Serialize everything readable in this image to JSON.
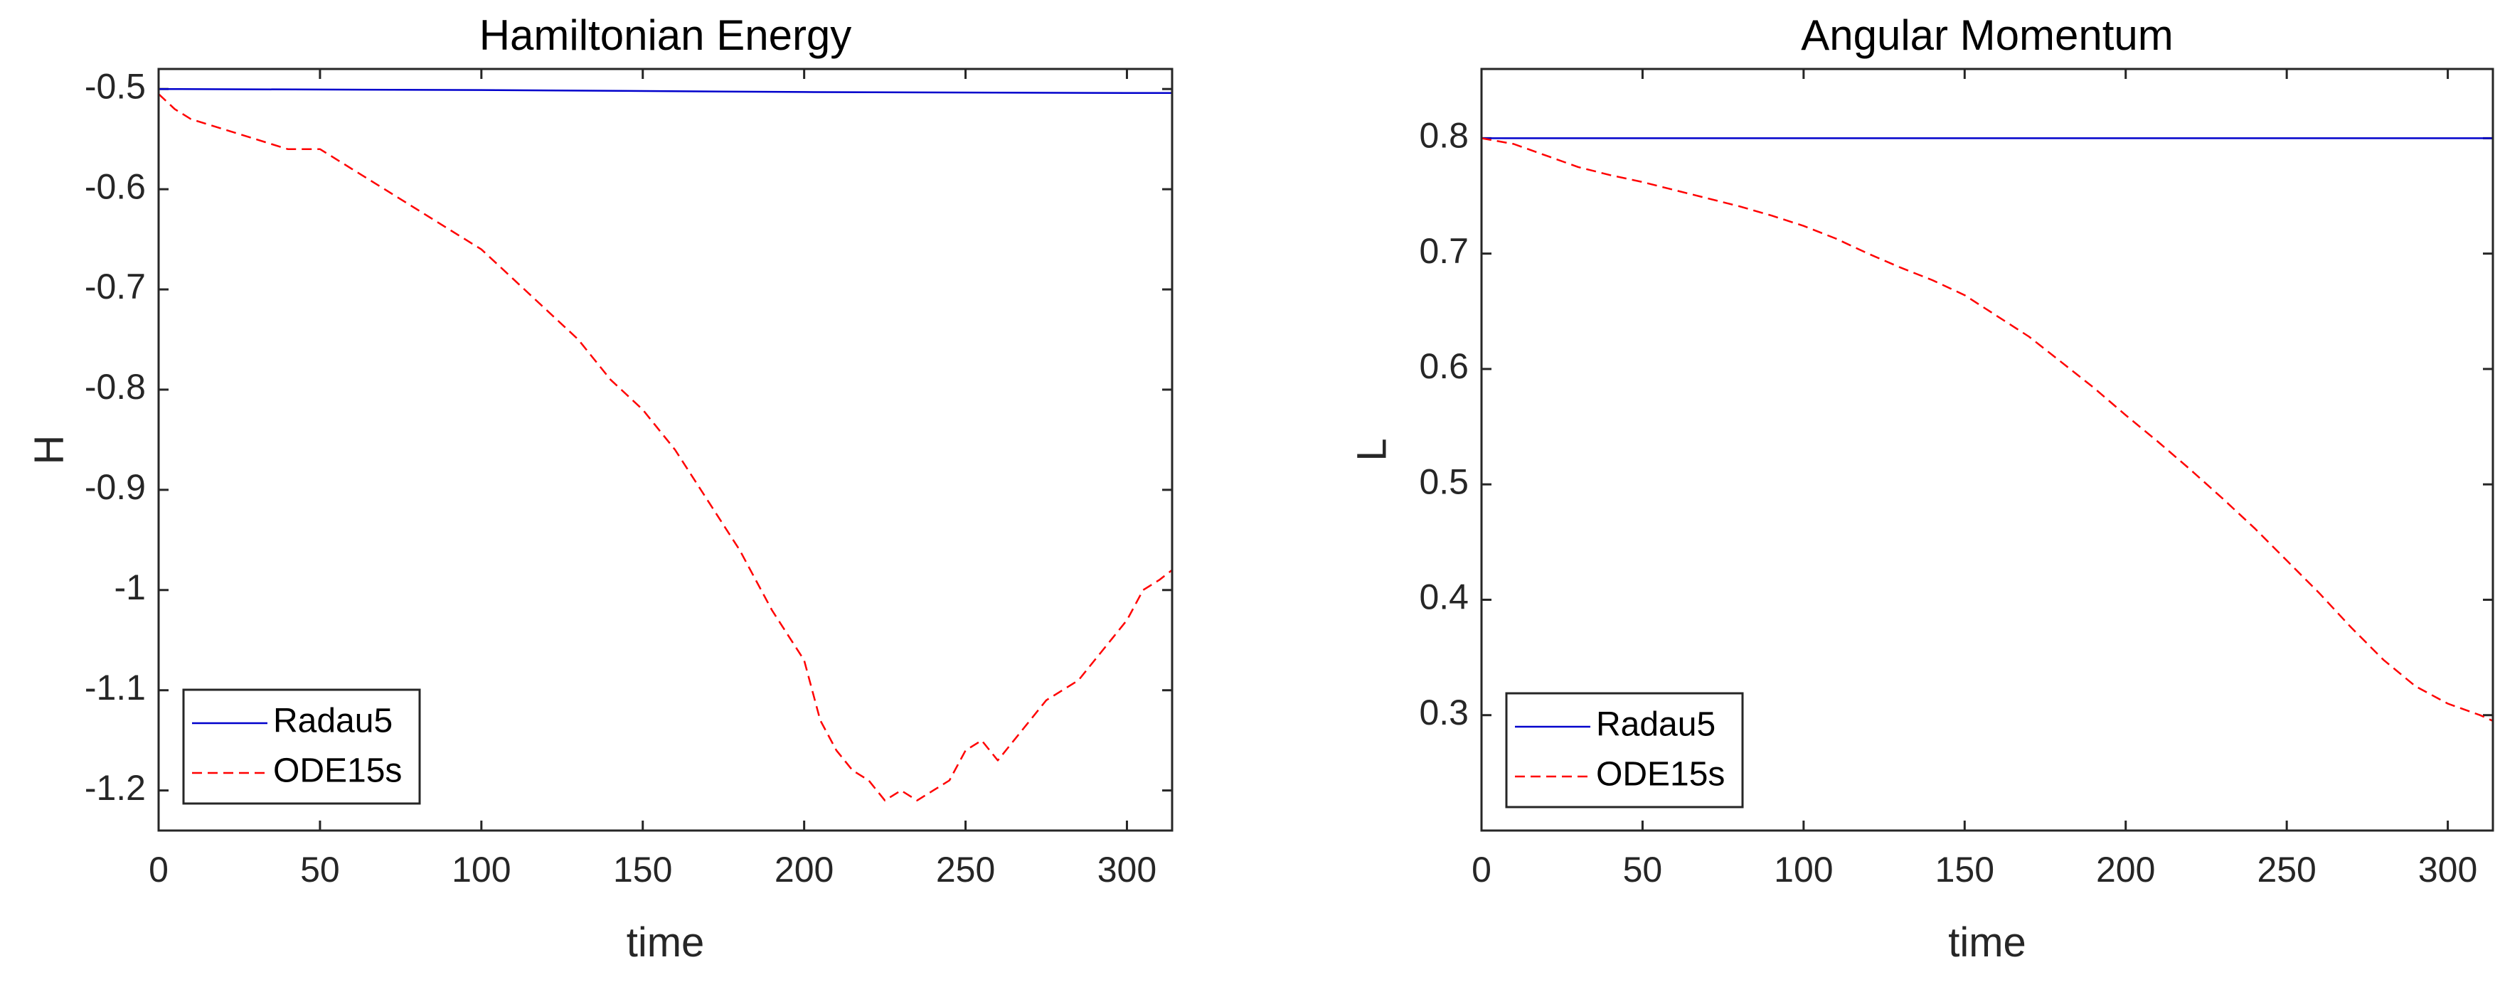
{
  "chart_data": [
    {
      "type": "line",
      "title": "Hamiltonian Energy",
      "xlabel": "time",
      "ylabel": "H",
      "xlim": [
        0,
        314
      ],
      "ylim": [
        -1.24,
        -0.48
      ],
      "xticks": [
        0,
        50,
        100,
        150,
        200,
        250,
        300
      ],
      "yticks": [
        -0.5,
        -0.6,
        -0.7,
        -0.8,
        -0.9,
        -1,
        -1.1,
        -1.2
      ],
      "xtick_labels": [
        "0",
        "50",
        "100",
        "150",
        "200",
        "250",
        "300"
      ],
      "ytick_labels": [
        "-0.5",
        "-0.6",
        "-0.7",
        "-0.8",
        "-0.9",
        "-1",
        "-1.1",
        "-1.2"
      ],
      "legend_position": "bottom-left",
      "series": [
        {
          "name": "Radau5",
          "style": "solid",
          "color": "#0000cc",
          "x": [
            0,
            100,
            200,
            300,
            314
          ],
          "y": [
            -0.5,
            -0.501,
            -0.503,
            -0.504,
            -0.504
          ]
        },
        {
          "name": "ODE15s",
          "style": "dashed",
          "color": "#ff0000",
          "x": [
            0,
            5,
            10,
            20,
            30,
            40,
            50,
            60,
            70,
            80,
            90,
            100,
            110,
            120,
            130,
            140,
            150,
            160,
            170,
            180,
            190,
            200,
            205,
            210,
            215,
            220,
            225,
            230,
            235,
            240,
            245,
            250,
            255,
            260,
            265,
            270,
            275,
            280,
            285,
            290,
            295,
            300,
            305,
            310,
            314
          ],
          "y": [
            -0.505,
            -0.52,
            -0.53,
            -0.54,
            -0.55,
            -0.56,
            -0.56,
            -0.58,
            -0.6,
            -0.62,
            -0.64,
            -0.66,
            -0.69,
            -0.72,
            -0.75,
            -0.79,
            -0.82,
            -0.86,
            -0.91,
            -0.96,
            -1.02,
            -1.07,
            -1.13,
            -1.16,
            -1.18,
            -1.19,
            -1.21,
            -1.2,
            -1.21,
            -1.2,
            -1.19,
            -1.16,
            -1.15,
            -1.17,
            -1.15,
            -1.13,
            -1.11,
            -1.1,
            -1.09,
            -1.07,
            -1.05,
            -1.03,
            -1.0,
            -0.99,
            -0.98
          ]
        }
      ]
    },
    {
      "type": "line",
      "title": "Angular Momentum",
      "xlabel": "time",
      "ylabel": "L",
      "xlim": [
        0,
        314
      ],
      "ylim": [
        0.2,
        0.86
      ],
      "xticks": [
        0,
        50,
        100,
        150,
        200,
        250,
        300
      ],
      "yticks": [
        0.8,
        0.7,
        0.6,
        0.5,
        0.4,
        0.3
      ],
      "xtick_labels": [
        "0",
        "50",
        "100",
        "150",
        "200",
        "250",
        "300"
      ],
      "ytick_labels": [
        "0.8",
        "0.7",
        "0.6",
        "0.5",
        "0.4",
        "0.3"
      ],
      "legend_position": "bottom-left",
      "series": [
        {
          "name": "Radau5",
          "style": "solid",
          "color": "#0000cc",
          "x": [
            0,
            314
          ],
          "y": [
            0.8,
            0.8
          ]
        },
        {
          "name": "ODE15s",
          "style": "dashed",
          "color": "#ff0000",
          "x": [
            0,
            10,
            20,
            30,
            40,
            50,
            60,
            70,
            80,
            90,
            100,
            110,
            120,
            130,
            140,
            150,
            160,
            170,
            180,
            190,
            200,
            210,
            220,
            230,
            240,
            250,
            260,
            270,
            280,
            290,
            300,
            310,
            314
          ],
          "y": [
            0.8,
            0.795,
            0.785,
            0.775,
            0.768,
            0.762,
            0.755,
            0.748,
            0.741,
            0.733,
            0.724,
            0.713,
            0.7,
            0.688,
            0.677,
            0.664,
            0.646,
            0.628,
            0.606,
            0.584,
            0.56,
            0.537,
            0.513,
            0.488,
            0.462,
            0.434,
            0.406,
            0.376,
            0.348,
            0.325,
            0.31,
            0.3,
            0.295
          ]
        }
      ]
    }
  ]
}
